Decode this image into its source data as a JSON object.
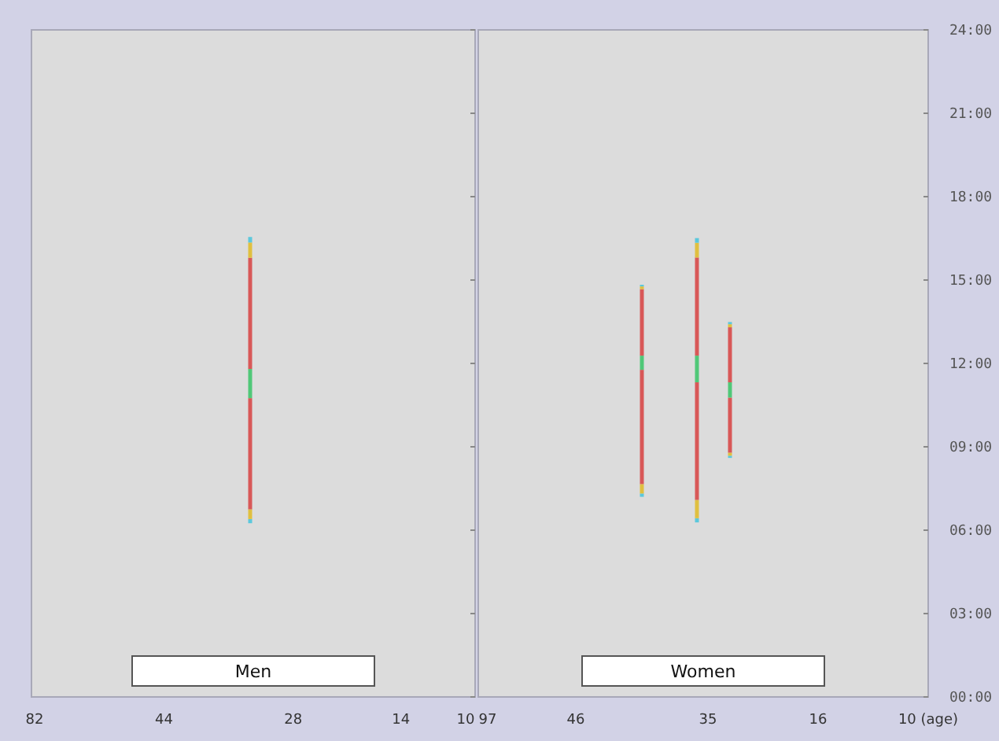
{
  "chart_data": [
    {
      "type": "bar",
      "title": "Men",
      "tick_labels": "x",
      "categories": [
        "82",
        null,
        null,
        null,
        null,
        null,
        null,
        null,
        null,
        null,
        null,
        null,
        "44",
        null,
        null,
        null,
        null,
        null,
        null,
        null,
        null,
        null,
        null,
        null,
        "28",
        null,
        null,
        null,
        null,
        null,
        null,
        null,
        null,
        null,
        "14",
        null,
        null,
        null,
        null,
        null,
        "10"
      ],
      "ylim": [
        0,
        24
      ],
      "yticks": [
        {
          "value": 0,
          "label": null
        },
        {
          "value": 3,
          "label": null
        },
        {
          "value": 6,
          "label": null
        },
        {
          "value": 9,
          "label": null
        },
        {
          "value": 12,
          "label": null
        },
        {
          "value": 15,
          "label": null
        },
        {
          "value": 18,
          "label": null
        },
        {
          "value": 21,
          "label": null
        },
        {
          "value": 24,
          "label": null
        }
      ],
      "series": [
        {
          "color": "#5cc8dc",
          "base": [
            null,
            null,
            null,
            null,
            null,
            null,
            null,
            null,
            null,
            null,
            null,
            null,
            null,
            null,
            null,
            null,
            null,
            null,
            null,
            null,
            6.25,
            null,
            null,
            null,
            null,
            null,
            null,
            null,
            null,
            null,
            null,
            null,
            null,
            null,
            null,
            null,
            null,
            null,
            null,
            null,
            null
          ],
          "values": [
            null,
            null,
            null,
            null,
            null,
            null,
            null,
            null,
            null,
            null,
            null,
            null,
            null,
            null,
            null,
            null,
            null,
            null,
            null,
            null,
            0.15,
            null,
            null,
            null,
            null,
            null,
            null,
            null,
            null,
            null,
            null,
            null,
            null,
            null,
            null,
            null,
            null,
            null,
            null,
            null,
            null
          ]
        },
        {
          "color": "#e0c040",
          "base": [
            null,
            null,
            null,
            null,
            null,
            null,
            null,
            null,
            null,
            null,
            null,
            null,
            null,
            null,
            null,
            null,
            null,
            null,
            null,
            null,
            6.4,
            null,
            null,
            null,
            null,
            null,
            null,
            null,
            null,
            null,
            null,
            null,
            null,
            null,
            null,
            null,
            null,
            null,
            null,
            null,
            null
          ],
          "values": [
            null,
            null,
            null,
            null,
            null,
            null,
            null,
            null,
            null,
            null,
            null,
            null,
            null,
            null,
            null,
            null,
            null,
            null,
            null,
            null,
            0.35,
            null,
            null,
            null,
            null,
            null,
            null,
            null,
            null,
            null,
            null,
            null,
            null,
            null,
            null,
            null,
            null,
            null,
            null,
            null,
            null
          ]
        },
        {
          "color": "#d85858",
          "base": [
            null,
            null,
            null,
            null,
            null,
            null,
            null,
            null,
            null,
            null,
            null,
            null,
            null,
            null,
            null,
            null,
            null,
            null,
            null,
            null,
            6.75,
            null,
            null,
            null,
            null,
            null,
            null,
            null,
            null,
            null,
            null,
            null,
            null,
            null,
            null,
            null,
            null,
            null,
            null,
            null,
            null
          ],
          "values": [
            null,
            null,
            null,
            null,
            null,
            null,
            null,
            null,
            null,
            null,
            null,
            null,
            null,
            null,
            null,
            null,
            null,
            null,
            null,
            null,
            4.0,
            null,
            null,
            null,
            null,
            null,
            null,
            null,
            null,
            null,
            null,
            null,
            null,
            null,
            null,
            null,
            null,
            null,
            null,
            null,
            null
          ]
        },
        {
          "color": "#50c878",
          "base": [
            null,
            null,
            null,
            null,
            null,
            null,
            null,
            null,
            null,
            null,
            null,
            null,
            null,
            null,
            null,
            null,
            null,
            null,
            null,
            null,
            10.75,
            null,
            null,
            null,
            null,
            null,
            null,
            null,
            null,
            null,
            null,
            null,
            null,
            null,
            null,
            null,
            null,
            null,
            null,
            null,
            null
          ],
          "values": [
            null,
            null,
            null,
            null,
            null,
            null,
            null,
            null,
            null,
            null,
            null,
            null,
            null,
            null,
            null,
            null,
            null,
            null,
            null,
            null,
            1.05,
            null,
            null,
            null,
            null,
            null,
            null,
            null,
            null,
            null,
            null,
            null,
            null,
            null,
            null,
            null,
            null,
            null,
            null,
            null,
            null
          ]
        },
        {
          "color": "#d85858",
          "base": [
            null,
            null,
            null,
            null,
            null,
            null,
            null,
            null,
            null,
            null,
            null,
            null,
            null,
            null,
            null,
            null,
            null,
            null,
            null,
            null,
            11.8,
            null,
            null,
            null,
            null,
            null,
            null,
            null,
            null,
            null,
            null,
            null,
            null,
            null,
            null,
            null,
            null,
            null,
            null,
            null,
            null
          ],
          "values": [
            null,
            null,
            null,
            null,
            null,
            null,
            null,
            null,
            null,
            null,
            null,
            null,
            null,
            null,
            null,
            null,
            null,
            null,
            null,
            null,
            4.0,
            null,
            null,
            null,
            null,
            null,
            null,
            null,
            null,
            null,
            null,
            null,
            null,
            null,
            null,
            null,
            null,
            null,
            null,
            null,
            null
          ]
        },
        {
          "color": "#e0c040",
          "base": [
            null,
            null,
            null,
            null,
            null,
            null,
            null,
            null,
            null,
            null,
            null,
            null,
            null,
            null,
            null,
            null,
            null,
            null,
            null,
            null,
            15.8,
            null,
            null,
            null,
            null,
            null,
            null,
            null,
            null,
            null,
            null,
            null,
            null,
            null,
            null,
            null,
            null,
            null,
            null,
            null,
            null
          ],
          "values": [
            null,
            null,
            null,
            null,
            null,
            null,
            null,
            null,
            null,
            null,
            null,
            null,
            null,
            null,
            null,
            null,
            null,
            null,
            null,
            null,
            0.55,
            null,
            null,
            null,
            null,
            null,
            null,
            null,
            null,
            null,
            null,
            null,
            null,
            null,
            null,
            null,
            null,
            null,
            null,
            null,
            null
          ]
        },
        {
          "color": "#5cc8dc",
          "base": [
            null,
            null,
            null,
            null,
            null,
            null,
            null,
            null,
            null,
            null,
            null,
            null,
            null,
            null,
            null,
            null,
            null,
            null,
            null,
            null,
            16.35,
            null,
            null,
            null,
            null,
            null,
            null,
            null,
            null,
            null,
            null,
            null,
            null,
            null,
            null,
            null,
            null,
            null,
            null,
            null,
            null
          ],
          "values": [
            null,
            null,
            null,
            null,
            null,
            null,
            null,
            null,
            null,
            null,
            null,
            null,
            null,
            null,
            null,
            null,
            null,
            null,
            null,
            null,
            0.2,
            null,
            null,
            null,
            null,
            null,
            null,
            null,
            null,
            null,
            null,
            null,
            null,
            null,
            null,
            null,
            null,
            null,
            null,
            null,
            null
          ]
        }
      ]
    },
    {
      "type": "bar",
      "title": "Women",
      "categories": [
        "97",
        null,
        null,
        null,
        null,
        null,
        null,
        null,
        "46",
        null,
        null,
        null,
        null,
        null,
        null,
        null,
        null,
        null,
        null,
        null,
        "35",
        null,
        null,
        null,
        null,
        null,
        null,
        null,
        null,
        null,
        "16",
        null,
        null,
        null,
        null,
        null,
        null,
        null,
        null,
        null,
        "10 (age)"
      ],
      "ylim": [
        0,
        24
      ],
      "yticks": [
        {
          "value": 0,
          "label": "00:00"
        },
        {
          "value": 3,
          "label": "03:00"
        },
        {
          "value": 6,
          "label": "06:00"
        },
        {
          "value": 9,
          "label": "09:00"
        },
        {
          "value": 12,
          "label": "12:00"
        },
        {
          "value": 15,
          "label": "15:00"
        },
        {
          "value": 18,
          "label": "18:00"
        },
        {
          "value": 21,
          "label": "21:00"
        },
        {
          "value": 24,
          "label": "24:00"
        }
      ],
      "series": [
        {
          "color": "#5cc8dc",
          "base": [
            null,
            null,
            null,
            null,
            null,
            null,
            null,
            null,
            null,
            null,
            null,
            null,
            null,
            null,
            7.2,
            null,
            null,
            null,
            null,
            6.28,
            null,
            null,
            8.6,
            null,
            null,
            null,
            null,
            null,
            null,
            null,
            null,
            null,
            null,
            null,
            null,
            null,
            null,
            null,
            null,
            null,
            null
          ],
          "values": [
            null,
            null,
            null,
            null,
            null,
            null,
            null,
            null,
            null,
            null,
            null,
            null,
            null,
            null,
            0.12,
            null,
            null,
            null,
            null,
            0.15,
            null,
            null,
            0.08,
            null,
            null,
            null,
            null,
            null,
            null,
            null,
            null,
            null,
            null,
            null,
            null,
            null,
            null,
            null,
            null,
            null,
            null
          ]
        },
        {
          "color": "#e0c040",
          "base": [
            null,
            null,
            null,
            null,
            null,
            null,
            null,
            null,
            null,
            null,
            null,
            null,
            null,
            null,
            7.32,
            null,
            null,
            null,
            null,
            6.43,
            null,
            null,
            8.68,
            null,
            null,
            null,
            null,
            null,
            null,
            null,
            null,
            null,
            null,
            null,
            null,
            null,
            null,
            null,
            null,
            null,
            null
          ],
          "values": [
            null,
            null,
            null,
            null,
            null,
            null,
            null,
            null,
            null,
            null,
            null,
            null,
            null,
            null,
            0.34,
            null,
            null,
            null,
            null,
            0.66,
            null,
            null,
            0.11,
            null,
            null,
            null,
            null,
            null,
            null,
            null,
            null,
            null,
            null,
            null,
            null,
            null,
            null,
            null,
            null,
            null,
            null
          ]
        },
        {
          "color": "#d85858",
          "base": [
            null,
            null,
            null,
            null,
            null,
            null,
            null,
            null,
            null,
            null,
            null,
            null,
            null,
            null,
            7.66,
            null,
            null,
            null,
            null,
            7.09,
            null,
            null,
            8.79,
            null,
            null,
            null,
            null,
            null,
            null,
            null,
            null,
            null,
            null,
            null,
            null,
            null,
            null,
            null,
            null,
            null,
            null
          ],
          "values": [
            null,
            null,
            null,
            null,
            null,
            null,
            null,
            null,
            null,
            null,
            null,
            null,
            null,
            null,
            4.11,
            null,
            null,
            null,
            null,
            4.23,
            null,
            null,
            1.98,
            null,
            null,
            null,
            null,
            null,
            null,
            null,
            null,
            null,
            null,
            null,
            null,
            null,
            null,
            null,
            null,
            null,
            null
          ]
        },
        {
          "color": "#50c878",
          "base": [
            null,
            null,
            null,
            null,
            null,
            null,
            null,
            null,
            null,
            null,
            null,
            null,
            null,
            null,
            11.77,
            null,
            null,
            null,
            null,
            11.32,
            null,
            null,
            10.77,
            null,
            null,
            null,
            null,
            null,
            null,
            null,
            null,
            null,
            null,
            null,
            null,
            null,
            null,
            null,
            null,
            null,
            null
          ],
          "values": [
            null,
            null,
            null,
            null,
            null,
            null,
            null,
            null,
            null,
            null,
            null,
            null,
            null,
            null,
            0.51,
            null,
            null,
            null,
            null,
            0.96,
            null,
            null,
            0.55,
            null,
            null,
            null,
            null,
            null,
            null,
            null,
            null,
            null,
            null,
            null,
            null,
            null,
            null,
            null,
            null,
            null,
            null
          ]
        },
        {
          "color": "#d85858",
          "base": [
            null,
            null,
            null,
            null,
            null,
            null,
            null,
            null,
            null,
            null,
            null,
            null,
            null,
            null,
            12.28,
            null,
            null,
            null,
            null,
            12.28,
            null,
            null,
            11.32,
            null,
            null,
            null,
            null,
            null,
            null,
            null,
            null,
            null,
            null,
            null,
            null,
            null,
            null,
            null,
            null,
            null,
            null
          ],
          "values": [
            null,
            null,
            null,
            null,
            null,
            null,
            null,
            null,
            null,
            null,
            null,
            null,
            null,
            null,
            2.39,
            null,
            null,
            null,
            null,
            3.53,
            null,
            null,
            1.98,
            null,
            null,
            null,
            null,
            null,
            null,
            null,
            null,
            null,
            null,
            null,
            null,
            null,
            null,
            null,
            null,
            null,
            null
          ]
        },
        {
          "color": "#e0c040",
          "base": [
            null,
            null,
            null,
            null,
            null,
            null,
            null,
            null,
            null,
            null,
            null,
            null,
            null,
            null,
            14.67,
            null,
            null,
            null,
            null,
            15.81,
            null,
            null,
            13.3,
            null,
            null,
            null,
            null,
            null,
            null,
            null,
            null,
            null,
            null,
            null,
            null,
            null,
            null,
            null,
            null,
            null,
            null
          ],
          "values": [
            null,
            null,
            null,
            null,
            null,
            null,
            null,
            null,
            null,
            null,
            null,
            null,
            null,
            null,
            0.1,
            null,
            null,
            null,
            null,
            0.53,
            null,
            null,
            0.11,
            null,
            null,
            null,
            null,
            null,
            null,
            null,
            null,
            null,
            null,
            null,
            null,
            null,
            null,
            null,
            null,
            null,
            null
          ]
        },
        {
          "color": "#5cc8dc",
          "base": [
            null,
            null,
            null,
            null,
            null,
            null,
            null,
            null,
            null,
            null,
            null,
            null,
            null,
            null,
            14.77,
            null,
            null,
            null,
            null,
            16.34,
            null,
            null,
            13.41,
            null,
            null,
            null,
            null,
            null,
            null,
            null,
            null,
            null,
            null,
            null,
            null,
            null,
            null,
            null,
            null,
            null,
            null
          ],
          "values": [
            null,
            null,
            null,
            null,
            null,
            null,
            null,
            null,
            null,
            null,
            null,
            null,
            null,
            null,
            0.06,
            null,
            null,
            null,
            null,
            0.17,
            null,
            null,
            0.08,
            null,
            null,
            null,
            null,
            null,
            null,
            null,
            null,
            null,
            null,
            null,
            null,
            null,
            null,
            null,
            null,
            null,
            null
          ]
        }
      ]
    }
  ]
}
